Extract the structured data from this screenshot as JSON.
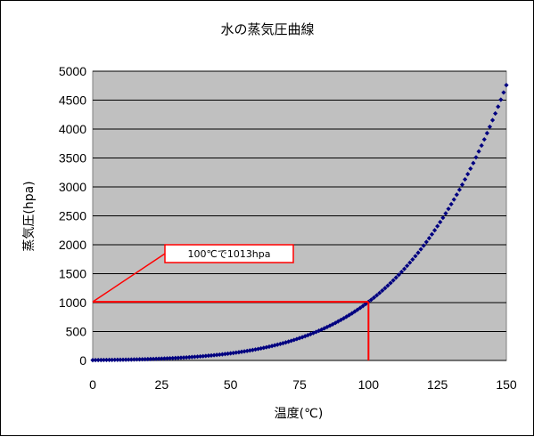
{
  "chart_data": {
    "type": "scatter",
    "title": "水の蒸気圧曲線",
    "xlabel": "温度(℃)",
    "ylabel": "蒸気圧(hpa)",
    "xlim": [
      0,
      150
    ],
    "ylim": [
      0,
      5000
    ],
    "xticks": [
      0,
      25,
      50,
      75,
      100,
      125,
      150
    ],
    "yticks": [
      0,
      500,
      1000,
      1500,
      2000,
      2500,
      3000,
      3500,
      4000,
      4500,
      5000
    ],
    "grid": true,
    "legend": "none",
    "colors": {
      "plot_bg": "#c0c0c0",
      "series": "#000080",
      "annotation": "#ff0000"
    },
    "series": [
      {
        "x": [
          0,
          5,
          10,
          15,
          20,
          25,
          30,
          35,
          40,
          45,
          50,
          55,
          60,
          65,
          70,
          75,
          80,
          85,
          90,
          95,
          100,
          105,
          110,
          115,
          120,
          125,
          130,
          135,
          140,
          145,
          150
        ],
        "y": [
          6,
          9,
          12,
          17,
          23,
          32,
          42,
          56,
          74,
          96,
          123,
          157,
          199,
          250,
          312,
          386,
          474,
          578,
          701,
          845,
          1013,
          1208,
          1433,
          1691,
          1985,
          2321,
          2701,
          3130,
          3613,
          4154,
          4760
        ]
      }
    ],
    "annotation": {
      "text": "100℃で1013hpa",
      "point": {
        "x": 100,
        "y": 1013
      }
    }
  }
}
